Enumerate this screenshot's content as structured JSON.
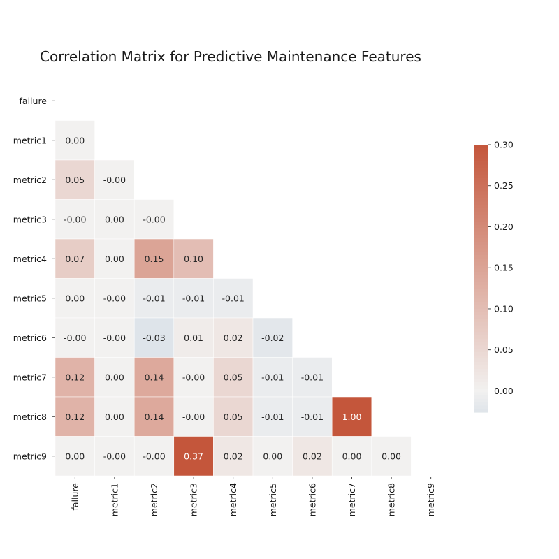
{
  "chart_data": {
    "type": "heatmap",
    "title": "Correlation Matrix for Predictive Maintenance Features",
    "row_labels": [
      "failure",
      "metric1",
      "metric2",
      "metric3",
      "metric4",
      "metric5",
      "metric6",
      "metric7",
      "metric8",
      "metric9"
    ],
    "col_labels": [
      "failure",
      "metric1",
      "metric2",
      "metric3",
      "metric4",
      "metric5",
      "metric6",
      "metric7",
      "metric8",
      "metric9"
    ],
    "mask": "upper-triangle-including-diagonal",
    "values": [
      [],
      [
        0.0
      ],
      [
        0.05,
        -0.0
      ],
      [
        -0.0,
        0.0,
        -0.0
      ],
      [
        0.07,
        0.0,
        0.15,
        0.1
      ],
      [
        0.0,
        -0.0,
        -0.01,
        -0.01,
        -0.01
      ],
      [
        -0.0,
        -0.0,
        -0.03,
        0.01,
        0.02,
        -0.02
      ],
      [
        0.12,
        0.0,
        0.14,
        -0.0,
        0.05,
        -0.01,
        -0.01
      ],
      [
        0.12,
        0.0,
        0.14,
        -0.0,
        0.05,
        -0.01,
        -0.01,
        1.0
      ],
      [
        0.0,
        -0.0,
        -0.0,
        0.37,
        0.02,
        0.0,
        0.02,
        0.0,
        0.0
      ]
    ],
    "labels": [
      [],
      [
        "0.00"
      ],
      [
        "0.05",
        "-0.00"
      ],
      [
        "-0.00",
        "0.00",
        "-0.00"
      ],
      [
        "0.07",
        "0.00",
        "0.15",
        "0.10"
      ],
      [
        "0.00",
        "-0.00",
        "-0.01",
        "-0.01",
        "-0.01"
      ],
      [
        "-0.00",
        "-0.00",
        "-0.03",
        "0.01",
        "0.02",
        "-0.02"
      ],
      [
        "0.12",
        "0.00",
        "0.14",
        "-0.00",
        "0.05",
        "-0.01",
        "-0.01"
      ],
      [
        "0.12",
        "0.00",
        "0.14",
        "-0.00",
        "0.05",
        "-0.01",
        "-0.01",
        "1.00"
      ],
      [
        "0.00",
        "-0.00",
        "-0.00",
        "0.37",
        "0.02",
        "0.00",
        "0.02",
        "0.00",
        "0.00"
      ]
    ],
    "color_scale": {
      "vmin": -0.026,
      "vmax": 0.3,
      "center": 0.0,
      "negative_color": "#dee4ea",
      "neutral_color": "#f2f1f0",
      "positive_color": "#c4563b"
    },
    "colorbar": {
      "ticks": [
        0.0,
        0.05,
        0.1,
        0.15,
        0.2,
        0.25,
        0.3
      ],
      "tick_labels": [
        "0.00",
        "0.05",
        "0.10",
        "0.15",
        "0.20",
        "0.25",
        "0.30"
      ],
      "position": "right"
    },
    "text_color_dark": "#262626",
    "text_color_light": "#ffffff"
  }
}
